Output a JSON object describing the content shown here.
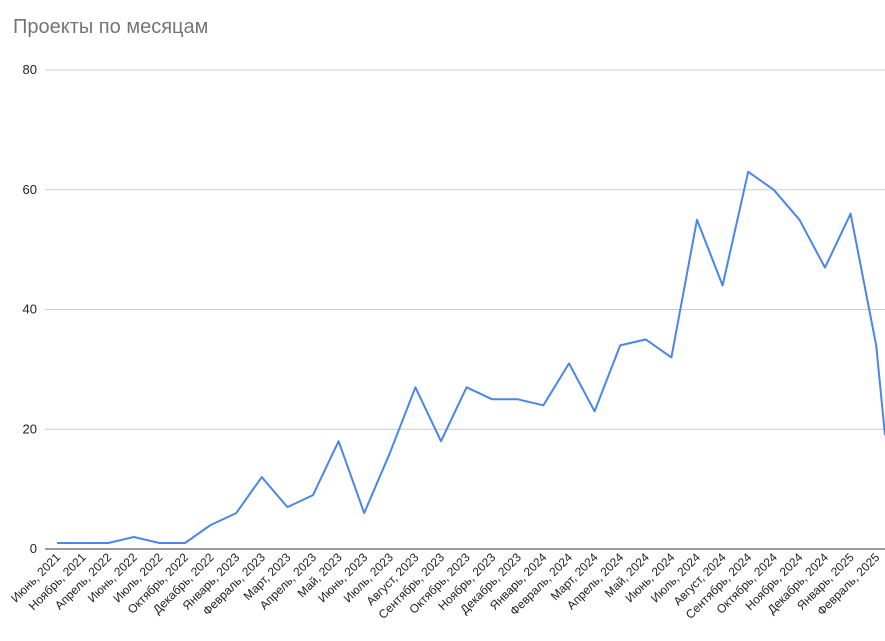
{
  "chart_data": {
    "type": "line",
    "title": "Проекты по месяцам",
    "xlabel": "",
    "ylabel": "",
    "ylim": [
      0,
      80
    ],
    "yticks": [
      "0",
      "20",
      "40",
      "60",
      "80"
    ],
    "grid": true,
    "legend": "none",
    "line_color": "#4a86e8",
    "categories": [
      "Июнь, 2021",
      "Ноябрь, 2021",
      "Апрель, 2022",
      "Июнь, 2022",
      "Июль, 2022",
      "Октябрь, 2022",
      "Декабрь, 2022",
      "Январь, 2023",
      "Февраль, 2023",
      "Март, 2023",
      "Апрель, 2023",
      "Май, 2023",
      "Июнь, 2023",
      "Июль, 2023",
      "Август, 2023",
      "Сентябрь, 2023",
      "Октябрь, 2023",
      "Ноябрь, 2023",
      "Декабрь, 2023",
      "Январь, 2024",
      "Февраль, 2024",
      "Март, 2024",
      "Апрель, 2024",
      "Май, 2024",
      "Июнь, 2024",
      "Июль, 2024",
      "Август, 2024",
      "Сентябрь, 2024",
      "Октябрь, 2024",
      "Ноябрь, 2024",
      "Декабрь, 2024",
      "Январь, 2025",
      "Февраль, 2025"
    ],
    "values": [
      1,
      1,
      1,
      2,
      1,
      1,
      4,
      6,
      12,
      7,
      9,
      18,
      6,
      16,
      27,
      18,
      27,
      25,
      25,
      24,
      31,
      23,
      34,
      35,
      32,
      55,
      44,
      63,
      60,
      55,
      47,
      56,
      34
    ],
    "trailing_value": 19
  }
}
